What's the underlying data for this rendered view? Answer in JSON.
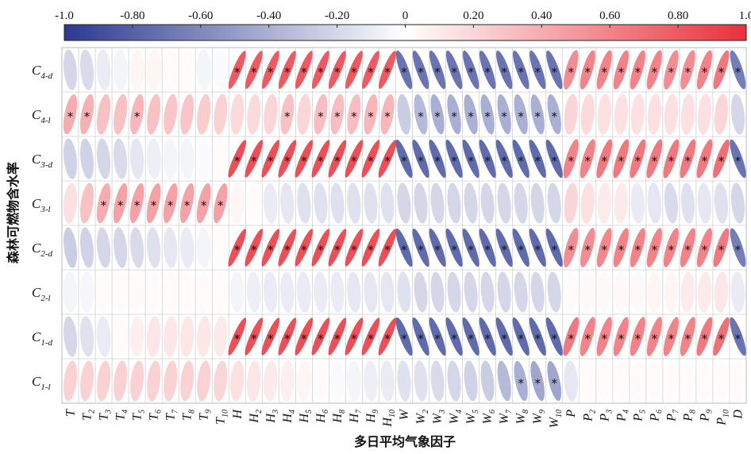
{
  "chart_data": {
    "type": "heatmap",
    "title": "",
    "xlabel": "多日平均气象因子",
    "ylabel": "森林可燃物含水率",
    "colorbar": {
      "range": [
        -1.0,
        1.0
      ],
      "tick_labels": [
        "-1.0",
        "-0.80",
        "-0.60",
        "-0.40",
        "-0.20",
        "0",
        "0.20",
        "0.40",
        "0.60",
        "0.80",
        "1.0"
      ],
      "tick_values": [
        -1.0,
        -0.8,
        -0.6,
        -0.4,
        -0.2,
        0,
        0.2,
        0.4,
        0.6,
        0.8,
        1.0
      ],
      "colors": [
        "#2b3990",
        "#ffffff",
        "#e8313b"
      ]
    },
    "columns": [
      {
        "base": "T",
        "sub": ""
      },
      {
        "base": "T",
        "sub": "2"
      },
      {
        "base": "T",
        "sub": "3"
      },
      {
        "base": "T",
        "sub": "4"
      },
      {
        "base": "T",
        "sub": "5"
      },
      {
        "base": "T",
        "sub": "6"
      },
      {
        "base": "T",
        "sub": "7"
      },
      {
        "base": "T",
        "sub": "8"
      },
      {
        "base": "T",
        "sub": "9"
      },
      {
        "base": "T",
        "sub": "10"
      },
      {
        "base": "H",
        "sub": ""
      },
      {
        "base": "H",
        "sub": "2"
      },
      {
        "base": "H",
        "sub": "3"
      },
      {
        "base": "H",
        "sub": "4"
      },
      {
        "base": "H",
        "sub": "5"
      },
      {
        "base": "H",
        "sub": "6"
      },
      {
        "base": "H",
        "sub": "8"
      },
      {
        "base": "H",
        "sub": "7"
      },
      {
        "base": "H",
        "sub": "9"
      },
      {
        "base": "H",
        "sub": "10"
      },
      {
        "base": "W",
        "sub": ""
      },
      {
        "base": "W",
        "sub": "2"
      },
      {
        "base": "W",
        "sub": "3"
      },
      {
        "base": "W",
        "sub": "4"
      },
      {
        "base": "W",
        "sub": "5"
      },
      {
        "base": "W",
        "sub": "6"
      },
      {
        "base": "W",
        "sub": "7"
      },
      {
        "base": "W",
        "sub": "8"
      },
      {
        "base": "W",
        "sub": "9"
      },
      {
        "base": "W",
        "sub": "10"
      },
      {
        "base": "P",
        "sub": ""
      },
      {
        "base": "P",
        "sub": "2"
      },
      {
        "base": "P",
        "sub": "3"
      },
      {
        "base": "P",
        "sub": "4"
      },
      {
        "base": "P",
        "sub": "5"
      },
      {
        "base": "P",
        "sub": "6"
      },
      {
        "base": "P",
        "sub": "7"
      },
      {
        "base": "P",
        "sub": "8"
      },
      {
        "base": "P",
        "sub": "9"
      },
      {
        "base": "P",
        "sub": "10"
      },
      {
        "base": "D",
        "sub": ""
      }
    ],
    "rows": [
      {
        "base": "C",
        "sub": "4-d"
      },
      {
        "base": "C",
        "sub": "4-l"
      },
      {
        "base": "C",
        "sub": "3-d"
      },
      {
        "base": "C",
        "sub": "3-l"
      },
      {
        "base": "C",
        "sub": "2-d"
      },
      {
        "base": "C",
        "sub": "2-l"
      },
      {
        "base": "C",
        "sub": "1-d"
      },
      {
        "base": "C",
        "sub": "1-l"
      }
    ],
    "values": [
      [
        -0.2,
        -0.18,
        -0.1,
        -0.05,
        0.05,
        0.05,
        0.02,
        0.02,
        -0.05,
        -0.02,
        0.8,
        0.8,
        0.8,
        0.8,
        0.8,
        0.8,
        0.8,
        0.8,
        0.8,
        0.8,
        -0.7,
        -0.7,
        -0.7,
        -0.7,
        -0.7,
        -0.7,
        -0.7,
        -0.7,
        -0.7,
        -0.7,
        0.55,
        0.6,
        0.6,
        0.6,
        0.6,
        0.6,
        0.55,
        0.55,
        0.6,
        0.65,
        -0.65
      ],
      [
        0.4,
        0.38,
        0.3,
        0.3,
        0.35,
        0.3,
        0.28,
        0.28,
        0.25,
        0.22,
        0.18,
        0.18,
        0.2,
        0.3,
        0.2,
        0.32,
        0.32,
        0.32,
        0.35,
        0.35,
        -0.25,
        -0.35,
        -0.4,
        -0.4,
        -0.4,
        -0.4,
        -0.4,
        -0.4,
        -0.4,
        -0.4,
        0.2,
        0.18,
        0.15,
        0.15,
        0.15,
        0.15,
        0.15,
        0.15,
        0.15,
        0.2,
        -0.2
      ],
      [
        -0.22,
        -0.22,
        -0.2,
        -0.18,
        -0.12,
        -0.08,
        -0.05,
        -0.05,
        -0.02,
        0.02,
        0.85,
        0.85,
        0.85,
        0.85,
        0.85,
        0.85,
        0.85,
        0.85,
        0.85,
        0.85,
        -0.75,
        -0.75,
        -0.75,
        -0.75,
        -0.75,
        -0.75,
        -0.75,
        -0.75,
        -0.75,
        -0.75,
        0.6,
        0.6,
        0.65,
        0.65,
        0.65,
        0.65,
        0.65,
        0.65,
        0.65,
        0.7,
        -0.7
      ],
      [
        0.15,
        0.3,
        0.4,
        0.45,
        0.45,
        0.45,
        0.45,
        0.45,
        0.45,
        0.45,
        0.05,
        0.02,
        -0.1,
        -0.12,
        -0.15,
        -0.15,
        -0.15,
        -0.15,
        -0.15,
        -0.15,
        -0.2,
        -0.2,
        -0.2,
        -0.2,
        -0.2,
        -0.2,
        -0.2,
        -0.2,
        -0.2,
        -0.2,
        0.2,
        0.15,
        0.1,
        0.1,
        -0.1,
        -0.12,
        -0.18,
        -0.15,
        -0.12,
        -0.15,
        -0.2
      ],
      [
        -0.25,
        -0.22,
        -0.2,
        -0.2,
        -0.18,
        -0.15,
        -0.12,
        -0.1,
        -0.05,
        0.02,
        0.85,
        0.85,
        0.85,
        0.85,
        0.85,
        0.85,
        0.85,
        0.85,
        0.85,
        0.85,
        -0.75,
        -0.75,
        -0.75,
        -0.75,
        -0.75,
        -0.75,
        -0.75,
        -0.75,
        -0.75,
        -0.75,
        0.55,
        0.55,
        0.58,
        0.6,
        0.6,
        0.6,
        0.6,
        0.6,
        0.6,
        0.65,
        -0.65
      ],
      [
        -0.05,
        -0.04,
        0.02,
        0.02,
        0.02,
        0.02,
        0.02,
        0.02,
        0.02,
        0.02,
        -0.05,
        -0.08,
        -0.1,
        -0.1,
        -0.1,
        -0.1,
        -0.1,
        -0.12,
        -0.12,
        -0.12,
        -0.15,
        -0.2,
        -0.2,
        -0.2,
        -0.2,
        -0.2,
        -0.2,
        -0.2,
        -0.2,
        -0.2,
        0.02,
        0.03,
        0.03,
        0.03,
        0.03,
        0.05,
        0.05,
        0.1,
        0.1,
        0.12,
        -0.1
      ],
      [
        -0.2,
        -0.15,
        -0.1,
        0.02,
        0.08,
        0.12,
        0.12,
        0.12,
        0.12,
        0.1,
        0.85,
        0.85,
        0.85,
        0.85,
        0.85,
        0.85,
        0.85,
        0.85,
        0.85,
        0.85,
        -0.75,
        -0.75,
        -0.75,
        -0.75,
        -0.75,
        -0.75,
        -0.75,
        -0.75,
        -0.75,
        -0.75,
        0.65,
        0.6,
        0.6,
        0.6,
        0.6,
        0.6,
        0.6,
        0.6,
        0.65,
        0.7,
        -0.7
      ],
      [
        0.22,
        0.22,
        0.22,
        0.22,
        0.22,
        0.22,
        0.22,
        0.22,
        0.22,
        0.2,
        0.15,
        0.12,
        0.1,
        0.08,
        0.05,
        0.02,
        -0.02,
        -0.05,
        -0.08,
        -0.1,
        -0.15,
        -0.15,
        -0.18,
        -0.2,
        -0.22,
        -0.25,
        -0.35,
        -0.4,
        -0.45,
        -0.45,
        -0.12,
        0.02,
        0.02,
        0.02,
        0.02,
        0.02,
        0.02,
        0.02,
        0.02,
        0.02,
        0.02
      ]
    ],
    "significant": [
      [
        0,
        0,
        0,
        0,
        0,
        0,
        0,
        0,
        0,
        0,
        1,
        1,
        1,
        1,
        1,
        1,
        1,
        1,
        1,
        1,
        1,
        1,
        1,
        1,
        1,
        1,
        1,
        1,
        1,
        1,
        1,
        1,
        1,
        1,
        1,
        1,
        1,
        1,
        1,
        1,
        1
      ],
      [
        1,
        1,
        0,
        0,
        1,
        0,
        0,
        0,
        0,
        0,
        0,
        0,
        0,
        1,
        0,
        1,
        1,
        1,
        1,
        1,
        0,
        1,
        1,
        1,
        1,
        1,
        1,
        1,
        1,
        1,
        0,
        0,
        0,
        0,
        0,
        0,
        0,
        0,
        0,
        0,
        0
      ],
      [
        0,
        0,
        0,
        0,
        0,
        0,
        0,
        0,
        0,
        0,
        1,
        1,
        1,
        1,
        1,
        1,
        1,
        1,
        1,
        1,
        1,
        1,
        1,
        1,
        1,
        1,
        1,
        1,
        1,
        1,
        1,
        1,
        1,
        1,
        1,
        1,
        1,
        1,
        1,
        1,
        1
      ],
      [
        0,
        0,
        1,
        1,
        1,
        1,
        1,
        1,
        1,
        1,
        0,
        0,
        0,
        0,
        0,
        0,
        0,
        0,
        0,
        0,
        0,
        0,
        0,
        0,
        0,
        0,
        0,
        0,
        0,
        0,
        0,
        0,
        0,
        0,
        0,
        0,
        0,
        0,
        0,
        0,
        0
      ],
      [
        0,
        0,
        0,
        0,
        0,
        0,
        0,
        0,
        0,
        0,
        1,
        1,
        1,
        1,
        1,
        1,
        1,
        1,
        1,
        1,
        1,
        1,
        1,
        1,
        1,
        1,
        1,
        1,
        1,
        1,
        1,
        1,
        1,
        1,
        1,
        1,
        1,
        1,
        1,
        1,
        1
      ],
      [
        0,
        0,
        0,
        0,
        0,
        0,
        0,
        0,
        0,
        0,
        0,
        0,
        0,
        0,
        0,
        0,
        0,
        0,
        0,
        0,
        0,
        0,
        0,
        0,
        0,
        0,
        0,
        0,
        0,
        0,
        0,
        0,
        0,
        0,
        0,
        0,
        0,
        0,
        0,
        0,
        0
      ],
      [
        0,
        0,
        0,
        0,
        0,
        0,
        0,
        0,
        0,
        0,
        1,
        1,
        1,
        1,
        1,
        1,
        1,
        1,
        1,
        1,
        1,
        1,
        1,
        1,
        1,
        1,
        1,
        1,
        1,
        1,
        1,
        1,
        1,
        1,
        1,
        1,
        1,
        1,
        1,
        1,
        1
      ],
      [
        0,
        0,
        0,
        0,
        0,
        0,
        0,
        0,
        0,
        0,
        0,
        0,
        0,
        0,
        0,
        0,
        0,
        0,
        0,
        0,
        0,
        0,
        0,
        0,
        0,
        0,
        0,
        1,
        1,
        1,
        0,
        0,
        0,
        0,
        0,
        0,
        0,
        0,
        0,
        0,
        0
      ]
    ],
    "significance_marker": "*"
  }
}
